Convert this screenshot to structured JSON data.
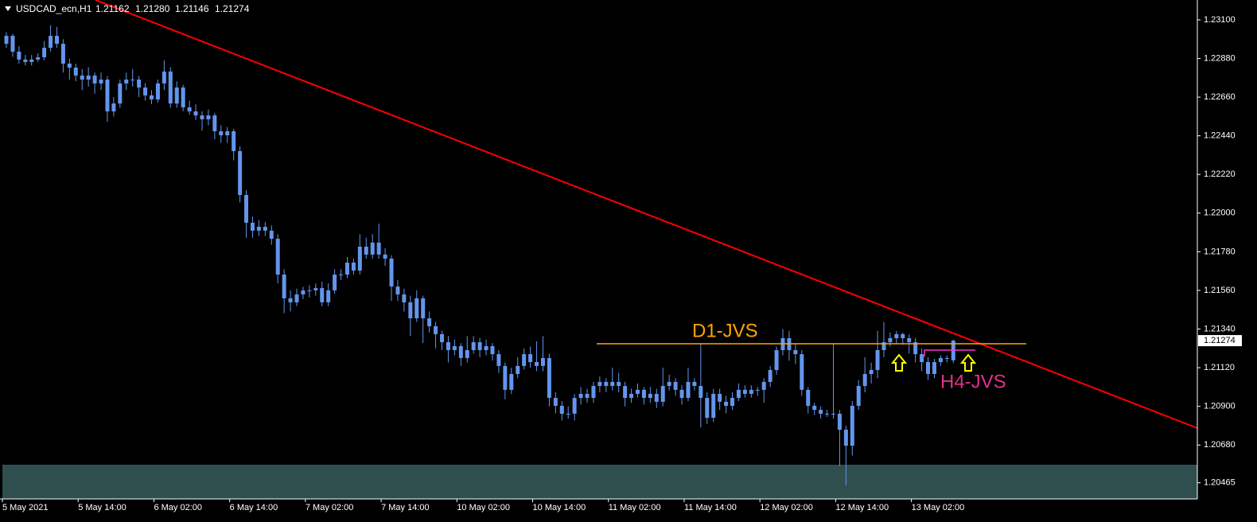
{
  "header": {
    "symbol": "USDCAD_ecn,H1",
    "ohlc": [
      "1.21162",
      "1.21280",
      "1.21146",
      "1.21274"
    ]
  },
  "annotations": {
    "d1": "D1-JVS",
    "h4": "H4-JVS"
  },
  "chart_data": {
    "type": "candlestick",
    "up_color": "#6495ed",
    "down_color": "#6495ed",
    "background": "#000000",
    "ylim": [
      1.20373,
      1.23213
    ],
    "yticks": [
      {
        "value": 1.231,
        "label": "1.23100"
      },
      {
        "value": 1.2288,
        "label": "1.22880"
      },
      {
        "value": 1.2266,
        "label": "1.22660"
      },
      {
        "value": 1.2244,
        "label": "1.22440"
      },
      {
        "value": 1.2222,
        "label": "1.22220"
      },
      {
        "value": 1.22,
        "label": "1.22000"
      },
      {
        "value": 1.2178,
        "label": "1.21780"
      },
      {
        "value": 1.2156,
        "label": "1.21560"
      },
      {
        "value": 1.2134,
        "label": "1.21340"
      },
      {
        "value": 1.2112,
        "label": "1.21120"
      },
      {
        "value": 1.209,
        "label": "1.20900"
      },
      {
        "value": 1.2068,
        "label": "1.20680"
      },
      1.20465
    ],
    "categories": [
      "5 May 2021",
      null,
      null,
      null,
      null,
      null,
      null,
      null,
      null,
      null,
      null,
      null,
      "5 May 14:00",
      null,
      null,
      null,
      null,
      null,
      null,
      null,
      null,
      null,
      null,
      null,
      "6 May 02:00",
      null,
      null,
      null,
      null,
      null,
      null,
      null,
      null,
      null,
      null,
      null,
      "6 May 14:00",
      null,
      null,
      null,
      null,
      null,
      null,
      null,
      null,
      null,
      null,
      null,
      "7 May 02:00",
      null,
      null,
      null,
      null,
      null,
      null,
      null,
      null,
      null,
      null,
      null,
      "7 May 14:00",
      null,
      null,
      null,
      null,
      null,
      null,
      null,
      null,
      null,
      null,
      null,
      "10 May 02:00",
      null,
      null,
      null,
      null,
      null,
      null,
      null,
      null,
      null,
      null,
      null,
      "10 May 14:00",
      null,
      null,
      null,
      null,
      null,
      null,
      null,
      null,
      null,
      null,
      null,
      "11 May 02:00",
      null,
      null,
      null,
      null,
      null,
      null,
      null,
      null,
      null,
      null,
      null,
      "11 May 14:00",
      null,
      null,
      null,
      null,
      null,
      null,
      null,
      null,
      null,
      null,
      null,
      "12 May 02:00",
      null,
      null,
      null,
      null,
      null,
      null,
      null,
      null,
      null,
      null,
      null,
      "12 May 14:00",
      null,
      null,
      null,
      null,
      null,
      null,
      null,
      null,
      null,
      null,
      null,
      "13 May 02:00",
      null,
      null,
      null,
      null,
      null,
      null
    ],
    "candles": [
      [
        1.22964,
        1.2303,
        1.2294,
        1.23009
      ],
      [
        1.23009,
        1.2302,
        1.2289,
        1.22919
      ],
      [
        1.22919,
        1.2295,
        1.2285,
        1.22874
      ],
      [
        1.22874,
        1.229,
        1.2284,
        1.2286
      ],
      [
        1.2286,
        1.229,
        1.2284,
        1.22874
      ],
      [
        1.22874,
        1.2291,
        1.2286,
        1.22887
      ],
      [
        1.22887,
        1.2298,
        1.2287,
        1.22941
      ],
      [
        1.22941,
        1.2307,
        1.2292,
        1.23009
      ],
      [
        1.23009,
        1.2306,
        1.2294,
        1.22964
      ],
      [
        1.22964,
        1.2299,
        1.228,
        1.22851
      ],
      [
        1.22851,
        1.2288,
        1.2276,
        1.22828
      ],
      [
        1.22828,
        1.2285,
        1.2275,
        1.22783
      ],
      [
        1.22783,
        1.2282,
        1.227,
        1.2276
      ],
      [
        1.2276,
        1.2283,
        1.2272,
        1.22783
      ],
      [
        1.22783,
        1.228,
        1.2268,
        1.22738
      ],
      [
        1.22738,
        1.228,
        1.227,
        1.2276
      ],
      [
        1.2276,
        1.2278,
        1.2252,
        1.22579
      ],
      [
        1.22579,
        1.2266,
        1.2255,
        1.22624
      ],
      [
        1.22624,
        1.2276,
        1.226,
        1.22738
      ],
      [
        1.22738,
        1.228,
        1.227,
        1.2276
      ],
      [
        1.2276,
        1.2282,
        1.2272,
        1.2276
      ],
      [
        1.2276,
        1.2278,
        1.2266,
        1.22715
      ],
      [
        1.22715,
        1.2274,
        1.2264,
        1.2267
      ],
      [
        1.2267,
        1.227,
        1.2262,
        1.22647
      ],
      [
        1.22647,
        1.2276,
        1.2263,
        1.22738
      ],
      [
        1.22738,
        1.2287,
        1.227,
        1.22806
      ],
      [
        1.22806,
        1.2283,
        1.226,
        1.22624
      ],
      [
        1.22624,
        1.2275,
        1.226,
        1.22715
      ],
      [
        1.22715,
        1.2273,
        1.2258,
        1.22602
      ],
      [
        1.22602,
        1.2264,
        1.2256,
        1.22579
      ],
      [
        1.22579,
        1.2262,
        1.2253,
        1.22556
      ],
      [
        1.22556,
        1.2258,
        1.2247,
        1.22534
      ],
      [
        1.22534,
        1.2259,
        1.225,
        1.22556
      ],
      [
        1.22556,
        1.2257,
        1.2242,
        1.22466
      ],
      [
        1.22466,
        1.225,
        1.224,
        1.22443
      ],
      [
        1.22443,
        1.2249,
        1.224,
        1.22466
      ],
      [
        1.22466,
        1.2248,
        1.223,
        1.22353
      ],
      [
        1.22353,
        1.2238,
        1.2206,
        1.22103
      ],
      [
        1.22103,
        1.2213,
        1.2186,
        1.21945
      ],
      [
        1.21945,
        1.2198,
        1.2186,
        1.219
      ],
      [
        1.219,
        1.2196,
        1.2187,
        1.21922
      ],
      [
        1.21922,
        1.2195,
        1.2187,
        1.219
      ],
      [
        1.219,
        1.2193,
        1.2182,
        1.21854
      ],
      [
        1.21854,
        1.2188,
        1.216,
        1.2165
      ],
      [
        1.2165,
        1.2168,
        1.2143,
        1.21515
      ],
      [
        1.21515,
        1.2156,
        1.2144,
        1.21492
      ],
      [
        1.21492,
        1.2157,
        1.2147,
        1.21537
      ],
      [
        1.21537,
        1.2158,
        1.2151,
        1.2156
      ],
      [
        1.2156,
        1.2159,
        1.2152,
        1.2156
      ],
      [
        1.2156,
        1.216,
        1.2153,
        1.21573
      ],
      [
        1.21573,
        1.2161,
        1.2147,
        1.21492
      ],
      [
        1.21492,
        1.216,
        1.2147,
        1.2156
      ],
      [
        1.2156,
        1.2168,
        1.2154,
        1.2165
      ],
      [
        1.2165,
        1.2168,
        1.2162,
        1.2165
      ],
      [
        1.2165,
        1.2175,
        1.2163,
        1.21718
      ],
      [
        1.21718,
        1.2174,
        1.2165,
        1.21673
      ],
      [
        1.21673,
        1.2188,
        1.2165,
        1.21809
      ],
      [
        1.21809,
        1.2186,
        1.2174,
        1.21764
      ],
      [
        1.21764,
        1.2188,
        1.2174,
        1.21832
      ],
      [
        1.21832,
        1.2194,
        1.2174,
        1.21764
      ],
      [
        1.21764,
        1.218,
        1.217,
        1.21741
      ],
      [
        1.21741,
        1.2176,
        1.215,
        1.21582
      ],
      [
        1.21582,
        1.2162,
        1.215,
        1.21537
      ],
      [
        1.21537,
        1.2157,
        1.2144,
        1.21492
      ],
      [
        1.21492,
        1.2153,
        1.213,
        1.21401
      ],
      [
        1.21401,
        1.2156,
        1.2138,
        1.21515
      ],
      [
        1.21515,
        1.2153,
        1.2126,
        1.21401
      ],
      [
        1.21401,
        1.2144,
        1.2132,
        1.21356
      ],
      [
        1.21356,
        1.2138,
        1.2123,
        1.21311
      ],
      [
        1.21311,
        1.2133,
        1.2122,
        1.21265
      ],
      [
        1.21265,
        1.213,
        1.2115,
        1.2122
      ],
      [
        1.2122,
        1.2128,
        1.2119,
        1.21243
      ],
      [
        1.21243,
        1.2126,
        1.2113,
        1.21175
      ],
      [
        1.21175,
        1.213,
        1.2115,
        1.2122
      ],
      [
        1.2122,
        1.213,
        1.212,
        1.21265
      ],
      [
        1.21265,
        1.2129,
        1.2118,
        1.2122
      ],
      [
        1.2122,
        1.2128,
        1.2119,
        1.21243
      ],
      [
        1.21243,
        1.2126,
        1.2116,
        1.21197
      ],
      [
        1.21197,
        1.2122,
        1.2109,
        1.2113
      ],
      [
        1.2113,
        1.2115,
        1.2094,
        1.20994
      ],
      [
        1.20994,
        1.2112,
        1.2097,
        1.21084
      ],
      [
        1.21084,
        1.2118,
        1.2106,
        1.2113
      ],
      [
        1.2113,
        1.2123,
        1.2111,
        1.21197
      ],
      [
        1.21197,
        1.2124,
        1.2112,
        1.21152
      ],
      [
        1.21152,
        1.2127,
        1.211,
        1.2113
      ],
      [
        1.2113,
        1.213,
        1.211,
        1.21175
      ],
      [
        1.21175,
        1.212,
        1.209,
        1.20948
      ],
      [
        1.20948,
        1.2098,
        1.2086,
        1.20903
      ],
      [
        1.20903,
        1.2093,
        1.2082,
        1.20858
      ],
      [
        1.20858,
        1.209,
        1.2083,
        1.20858
      ],
      [
        1.20858,
        1.2097,
        1.2082,
        1.20948
      ],
      [
        1.20948,
        1.2101,
        1.2091,
        1.20971
      ],
      [
        1.20971,
        1.21,
        1.2092,
        1.20948
      ],
      [
        1.20948,
        1.2104,
        1.2092,
        1.21016
      ],
      [
        1.21016,
        1.2107,
        1.2098,
        1.21039
      ],
      [
        1.21039,
        1.2106,
        1.2098,
        1.21016
      ],
      [
        1.21016,
        1.2112,
        1.2099,
        1.21039
      ],
      [
        1.21039,
        1.2109,
        1.2098,
        1.21016
      ],
      [
        1.21016,
        1.2104,
        1.209,
        1.20948
      ],
      [
        1.20948,
        1.21,
        1.2092,
        1.20971
      ],
      [
        1.20971,
        1.2103,
        1.2095,
        1.20994
      ],
      [
        1.20994,
        1.2101,
        1.2091,
        1.20948
      ],
      [
        1.20948,
        1.2101,
        1.2092,
        1.20971
      ],
      [
        1.20971,
        1.21,
        1.2089,
        1.20926
      ],
      [
        1.20926,
        1.2112,
        1.209,
        1.21016
      ],
      [
        1.21016,
        1.2108,
        1.2099,
        1.21039
      ],
      [
        1.21039,
        1.2106,
        1.2096,
        1.20994
      ],
      [
        1.20994,
        1.2102,
        1.2091,
        1.20948
      ],
      [
        1.20948,
        1.2112,
        1.2093,
        1.21039
      ],
      [
        1.21039,
        1.2106,
        1.2099,
        1.21016
      ],
      [
        1.21016,
        1.2126,
        1.2078,
        1.20948
      ],
      [
        1.20948,
        1.2098,
        1.208,
        1.20835
      ],
      [
        1.20835,
        1.21,
        1.2081,
        1.20971
      ],
      [
        1.20971,
        1.21,
        1.2088,
        1.20926
      ],
      [
        1.20926,
        1.2096,
        1.2086,
        1.20903
      ],
      [
        1.20903,
        1.2098,
        1.2088,
        1.20948
      ],
      [
        1.20948,
        1.2103,
        1.2093,
        1.20994
      ],
      [
        1.20994,
        1.2102,
        1.2095,
        1.20971
      ],
      [
        1.20971,
        1.2102,
        1.2095,
        1.20994
      ],
      [
        1.20994,
        1.2101,
        1.2096,
        1.20994
      ],
      [
        1.20994,
        1.2106,
        1.2092,
        1.21039
      ],
      [
        1.21039,
        1.2113,
        1.2101,
        1.21107
      ],
      [
        1.21107,
        1.2124,
        1.2108,
        1.2122
      ],
      [
        1.2122,
        1.2134,
        1.2119,
        1.21288
      ],
      [
        1.21288,
        1.2133,
        1.2116,
        1.2122
      ],
      [
        1.2122,
        1.2126,
        1.2114,
        1.21197
      ],
      [
        1.21197,
        1.2122,
        1.2096,
        1.20994
      ],
      [
        1.20994,
        1.2101,
        1.2086,
        1.20903
      ],
      [
        1.20903,
        1.2092,
        1.2085,
        1.2088
      ],
      [
        1.2088,
        1.209,
        1.2083,
        1.20858
      ],
      [
        1.20858,
        1.2088,
        1.2084,
        1.20858
      ],
      [
        1.20858,
        1.2126,
        1.2083,
        1.20858
      ],
      [
        1.20858,
        1.2088,
        1.2056,
        1.20767
      ],
      [
        1.20767,
        1.2079,
        1.2045,
        1.20676
      ],
      [
        1.20676,
        1.2093,
        1.2062,
        1.20903
      ],
      [
        1.20903,
        1.2105,
        1.2088,
        1.21016
      ],
      [
        1.21016,
        1.2118,
        1.2098,
        1.21084
      ],
      [
        1.21084,
        1.2115,
        1.2103,
        1.21107
      ],
      [
        1.21107,
        1.2133,
        1.2106,
        1.2122
      ],
      [
        1.2122,
        1.2138,
        1.2118,
        1.21265
      ],
      [
        1.21265,
        1.2132,
        1.2124,
        1.21288
      ],
      [
        1.21288,
        1.2133,
        1.2126,
        1.21311
      ],
      [
        1.21311,
        1.2132,
        1.2125,
        1.21288
      ],
      [
        1.21288,
        1.2131,
        1.212,
        1.21265
      ],
      [
        1.21265,
        1.2129,
        1.2115,
        1.21197
      ],
      [
        1.21197,
        1.2123,
        1.211,
        1.21152
      ],
      [
        1.21152,
        1.2118,
        1.2105,
        1.21084
      ],
      [
        1.21084,
        1.2117,
        1.2106,
        1.21152
      ],
      [
        1.21152,
        1.2119,
        1.2113,
        1.21175
      ],
      [
        1.21175,
        1.2119,
        1.2115,
        1.21175
      ],
      [
        1.21162,
        1.2128,
        1.21146,
        1.21274
      ]
    ]
  }
}
